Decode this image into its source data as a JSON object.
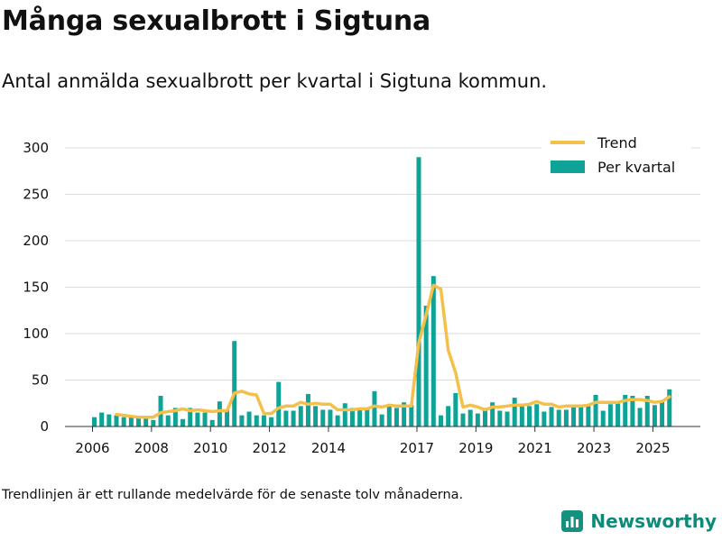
{
  "header": {
    "title": "Många sexualbrott i Sigtuna",
    "subtitle": "Antal anmälda sexualbrott per kvartal i Sigtuna kommun."
  },
  "footer": {
    "note": "Trendlinjen är ett rullande medelvärde för de senaste tolv månaderna.",
    "brand": "Newsworthy"
  },
  "colors": {
    "bars": "#0fa397",
    "trend": "#f5c04a",
    "grid": "#dddddd",
    "brand": "#0d8a78"
  },
  "chart_data": {
    "type": "bar",
    "title": "",
    "ylim": [
      0,
      300
    ],
    "y_ticks": [
      "0",
      "50",
      "100",
      "150",
      "200",
      "250",
      "300"
    ],
    "x_ticks": [
      "2006",
      "2008",
      "2010",
      "2012",
      "2014",
      "2017",
      "2019",
      "2021",
      "2023",
      "2025"
    ],
    "legend_position": "top-right",
    "grid": "horizontal",
    "series": [
      {
        "name": "Per kvartal",
        "type": "bar",
        "values": [
          10,
          15,
          13,
          12,
          10,
          10,
          10,
          10,
          7,
          33,
          12,
          20,
          8,
          20,
          15,
          15,
          7,
          27,
          18,
          92,
          12,
          16,
          12,
          12,
          10,
          48,
          17,
          17,
          22,
          35,
          22,
          18,
          18,
          12,
          25,
          20,
          18,
          18,
          38,
          13,
          22,
          20,
          26,
          23,
          290,
          130,
          162,
          12,
          22,
          36,
          14,
          18,
          14,
          20,
          26,
          17,
          16,
          31,
          22,
          22,
          24,
          16,
          21,
          18,
          18,
          22,
          21,
          22,
          34,
          17,
          24,
          25,
          34,
          33,
          20,
          33,
          23,
          28,
          40
        ]
      },
      {
        "name": "Trend",
        "type": "line",
        "values": [
          null,
          null,
          null,
          13,
          12,
          11,
          10,
          10,
          10,
          15,
          16,
          17,
          19,
          17,
          18,
          17,
          16,
          17,
          17,
          36,
          38,
          35,
          34,
          14,
          14,
          20,
          22,
          22,
          26,
          24,
          25,
          24,
          24,
          18,
          18,
          18,
          19,
          19,
          22,
          21,
          23,
          22,
          22,
          22,
          90,
          120,
          152,
          148,
          82,
          58,
          21,
          23,
          21,
          18,
          21,
          21,
          22,
          23,
          23,
          24,
          27,
          24,
          24,
          21,
          22,
          22,
          22,
          23,
          26,
          26,
          26,
          26,
          28,
          29,
          29,
          28,
          26,
          27,
          32
        ]
      }
    ]
  }
}
